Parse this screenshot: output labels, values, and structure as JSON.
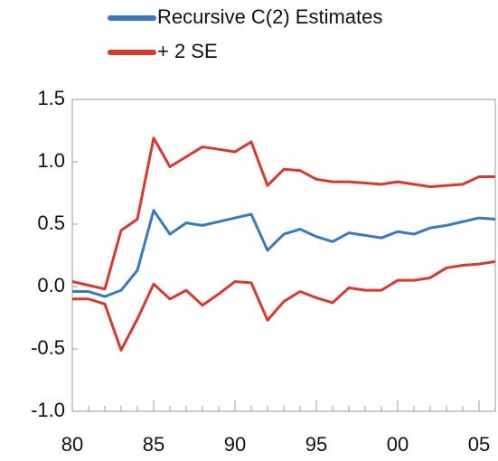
{
  "chart_data": {
    "type": "line",
    "x": [
      1980,
      1981,
      1982,
      1983,
      1984,
      1985,
      1986,
      1987,
      1988,
      1989,
      1990,
      1991,
      1992,
      1993,
      1994,
      1995,
      1996,
      1997,
      1998,
      1999,
      2000,
      2001,
      2002,
      2003,
      2004,
      2005,
      2006
    ],
    "series": [
      {
        "name": "Recursive C(2) Estimates",
        "color": "#3a78c0",
        "values": [
          -0.04,
          -0.04,
          -0.08,
          -0.03,
          0.13,
          0.61,
          0.42,
          0.51,
          0.49,
          0.52,
          0.55,
          0.58,
          0.29,
          0.42,
          0.46,
          0.4,
          0.36,
          0.43,
          0.41,
          0.39,
          0.44,
          0.42,
          0.47,
          0.49,
          0.52,
          0.55,
          0.54
        ]
      },
      {
        "name": "+ 2 SE",
        "color": "#d63a2f",
        "values": [
          0.04,
          0.01,
          -0.02,
          0.45,
          0.54,
          1.19,
          0.96,
          1.04,
          1.12,
          1.1,
          1.08,
          1.16,
          0.81,
          0.94,
          0.93,
          0.86,
          0.84,
          0.84,
          0.83,
          0.82,
          0.84,
          0.82,
          0.8,
          0.81,
          0.82,
          0.88,
          0.88
        ]
      },
      {
        "color": "#d63a2f",
        "values": [
          -0.1,
          -0.1,
          -0.14,
          -0.51,
          -0.26,
          0.02,
          -0.1,
          -0.03,
          -0.15,
          -0.06,
          0.04,
          0.03,
          -0.27,
          -0.12,
          -0.04,
          -0.09,
          -0.13,
          -0.01,
          -0.03,
          -0.03,
          0.05,
          0.05,
          0.07,
          0.15,
          0.17,
          0.18,
          0.2
        ]
      }
    ],
    "xlim": [
      1980,
      2006
    ],
    "xticks": [
      {
        "value": 1980,
        "label": "80"
      },
      {
        "value": 1985,
        "label": "85"
      },
      {
        "value": 1990,
        "label": "90"
      },
      {
        "value": 1995,
        "label": "95"
      },
      {
        "value": 2000,
        "label": "00"
      },
      {
        "value": 2005,
        "label": "05"
      }
    ],
    "xminorticks": [
      1981,
      1982,
      1983,
      1984,
      1986,
      1987,
      1988,
      1989,
      1991,
      1992,
      1993,
      1994,
      1996,
      1997,
      1998,
      1999,
      2001,
      2002,
      2003,
      2004,
      2006
    ],
    "ylim": [
      -1.0,
      1.5
    ],
    "yticks": [
      {
        "value": -1.0,
        "label": "-1.0"
      },
      -0.5,
      {
        "value": 0.0,
        "label": "0.0"
      },
      0.5,
      {
        "value": 1.0,
        "label": "1.0"
      },
      1.5
    ],
    "grid": false
  }
}
